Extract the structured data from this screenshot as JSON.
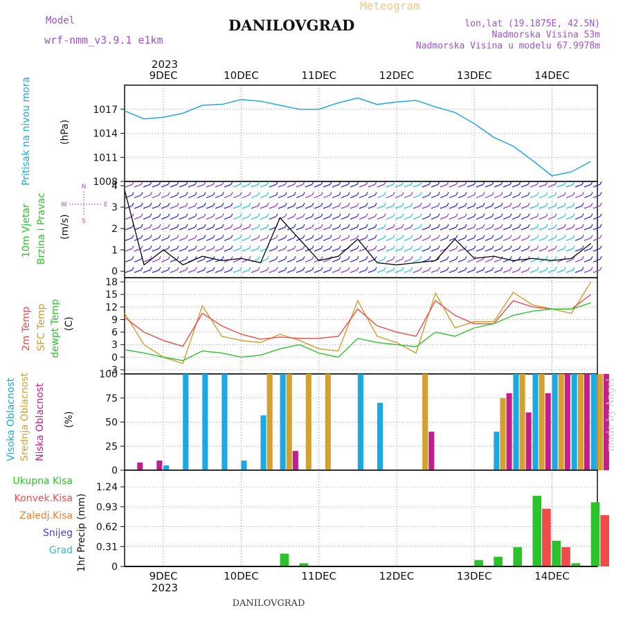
{
  "header": {
    "model_label": "Model",
    "model_name": "wrf-nmm_v3.9.1 e1km",
    "meteogram_label": "Meteogram",
    "title": "DANILOVGRAD",
    "coords": "lon,lat (19.1875E, 42.5N)",
    "elevation": "Nadmorska Visina 53m",
    "model_elevation": "Nadmorska Visina u modelu 67.9978m"
  },
  "top_axis": {
    "year": "2023",
    "days": [
      "9DEC",
      "10DEC",
      "11DEC",
      "12DEC",
      "13DEC",
      "14DEC"
    ]
  },
  "bottom_axis": {
    "year": "2023",
    "days": [
      "9DEC",
      "10DEC",
      "11DEC",
      "12DEC",
      "13DEC",
      "14DEC"
    ]
  },
  "footer": {
    "station": "DANILOVGRAD"
  },
  "watermark": "made by Angel",
  "colors": {
    "pressure": "#1ca8e0",
    "wind_blue": "#1a1aff",
    "wind_purple": "#8a2be2",
    "wind_cyan": "#21c5d0",
    "wind_green": "#3cc43c",
    "wind_yellow": "#d8b000",
    "t2m": "#f04a4a",
    "sfc": "#d49a2a",
    "dewpt": "#2ac42a",
    "cloud_high": "#1ca8e0",
    "cloud_mid": "#d4a030",
    "cloud_low": "#c0208c",
    "precip_total": "#2ac42a",
    "precip_conv": "#f04a4a",
    "precip_strat": "#f08030",
    "snow": "#4040e0",
    "hail": "#30c0c0"
  },
  "panels": {
    "pressure": {
      "label1": "Pritisak na nivou mora",
      "unit": "(hPa)"
    },
    "wind": {
      "label1": "10m Vjetar",
      "label2": "Brzina i Pravac",
      "unit": "(m/s)",
      "compass_n": "N",
      "compass_s": "S",
      "compass_w": "W",
      "compass_e": "E"
    },
    "temp": {
      "label1": "2m Temp",
      "label2": "SFC Temp",
      "label3": "dewpt Temp",
      "unit": "(C)"
    },
    "cloud": {
      "label1": "Visoka Oblacnost",
      "label2": "Srednja Oblacnost",
      "label3": "Niska Oblacnost",
      "unit": "(%)"
    },
    "precip": {
      "label_total": "Ukupna Kisa",
      "label_conv": "Konvek.Kisa",
      "label_strat": "Zaledj.Kisa",
      "label_snow": "Snijeg",
      "label_hail": "Grad",
      "ylabel": "1hr Precip (mm)"
    }
  },
  "chart_data": [
    {
      "type": "line",
      "title": "",
      "xlabel": "",
      "ylabel": "(hPa)",
      "x": [
        "2023-12-08T12",
        "2023-12-08T18",
        "2023-12-09T00",
        "2023-12-09T06",
        "2023-12-09T12",
        "2023-12-09T18",
        "2023-12-10T00",
        "2023-12-10T06",
        "2023-12-10T12",
        "2023-12-10T18",
        "2023-12-11T00",
        "2023-12-11T06",
        "2023-12-11T12",
        "2023-12-11T18",
        "2023-12-12T00",
        "2023-12-12T06",
        "2023-12-12T12",
        "2023-12-12T18",
        "2023-12-13T00",
        "2023-12-13T06",
        "2023-12-13T12",
        "2023-12-13T18",
        "2023-12-14T00",
        "2023-12-14T06",
        "2023-12-14T12"
      ],
      "series": [
        {
          "name": "Pritisak na nivou mora",
          "values": [
            1016.8,
            1015.8,
            1016.0,
            1016.5,
            1017.5,
            1017.6,
            1018.2,
            1018.0,
            1017.5,
            1017.0,
            1017.0,
            1017.8,
            1018.4,
            1017.6,
            1017.9,
            1018.1,
            1017.3,
            1016.6,
            1015.2,
            1013.5,
            1012.4,
            1010.6,
            1008.7,
            1009.2,
            1010.5
          ]
        }
      ],
      "ylim": [
        1008,
        1020
      ],
      "yticks": [
        1008,
        1011,
        1014,
        1017
      ],
      "grid": true
    },
    {
      "type": "line",
      "title": "",
      "xlabel": "",
      "ylabel": "(m/s)",
      "x": [
        "2023-12-08T12",
        "2023-12-08T18",
        "2023-12-09T00",
        "2023-12-09T06",
        "2023-12-09T12",
        "2023-12-09T18",
        "2023-12-10T00",
        "2023-12-10T06",
        "2023-12-10T12",
        "2023-12-10T18",
        "2023-12-11T00",
        "2023-12-11T06",
        "2023-12-11T12",
        "2023-12-11T18",
        "2023-12-12T00",
        "2023-12-12T06",
        "2023-12-12T12",
        "2023-12-12T18",
        "2023-12-13T00",
        "2023-12-13T06",
        "2023-12-13T12",
        "2023-12-13T18",
        "2023-12-14T00",
        "2023-12-14T06",
        "2023-12-14T12"
      ],
      "series": [
        {
          "name": "Brzina",
          "values": [
            3.8,
            0.3,
            1.0,
            0.3,
            0.7,
            0.5,
            0.6,
            0.4,
            2.5,
            1.5,
            0.5,
            0.7,
            1.5,
            0.4,
            0.3,
            0.4,
            0.5,
            1.5,
            0.6,
            0.7,
            0.5,
            0.6,
            0.5,
            0.6,
            1.3
          ]
        }
      ],
      "ylim": [
        -0.3,
        4.2
      ],
      "yticks": [
        0,
        1,
        2,
        3,
        4
      ],
      "grid": true
    },
    {
      "type": "line",
      "title": "",
      "xlabel": "",
      "ylabel": "(C)",
      "x": [
        "2023-12-08T12",
        "2023-12-08T18",
        "2023-12-09T00",
        "2023-12-09T06",
        "2023-12-09T12",
        "2023-12-09T18",
        "2023-12-10T00",
        "2023-12-10T06",
        "2023-12-10T12",
        "2023-12-10T18",
        "2023-12-11T00",
        "2023-12-11T06",
        "2023-12-11T12",
        "2023-12-11T18",
        "2023-12-12T00",
        "2023-12-12T06",
        "2023-12-12T12",
        "2023-12-12T18",
        "2023-12-13T00",
        "2023-12-13T06",
        "2023-12-13T12",
        "2023-12-13T18",
        "2023-12-14T00",
        "2023-12-14T06",
        "2023-12-14T12"
      ],
      "series": [
        {
          "name": "2m Temp",
          "values": [
            9.5,
            6.0,
            4.0,
            2.6,
            10.5,
            7.5,
            5.5,
            4.3,
            4.8,
            4.5,
            4.5,
            5.0,
            11.5,
            7.5,
            6.0,
            5.0,
            13.5,
            10.0,
            8.0,
            8.0,
            13.5,
            12.0,
            11.5,
            11.5,
            15.0
          ]
        },
        {
          "name": "SFC Temp",
          "values": [
            10.5,
            3.0,
            0.0,
            -1.5,
            12.3,
            5.0,
            4.0,
            3.5,
            5.5,
            4.0,
            2.0,
            1.5,
            13.5,
            5.0,
            3.5,
            1.0,
            15.3,
            7.0,
            8.5,
            8.5,
            15.5,
            12.5,
            11.5,
            10.5,
            18.0
          ]
        },
        {
          "name": "dewpt Temp",
          "values": [
            1.8,
            1.0,
            0.0,
            -0.8,
            1.5,
            1.0,
            0.0,
            0.5,
            2.0,
            3.0,
            1.0,
            0.0,
            4.5,
            3.5,
            3.0,
            2.5,
            6.0,
            5.0,
            7.0,
            8.0,
            10.0,
            11.0,
            11.5,
            11.5,
            13.0
          ]
        }
      ],
      "ylim": [
        -4,
        19
      ],
      "yticks": [
        -3,
        0,
        3,
        6,
        9,
        12,
        15,
        18
      ],
      "grid": true
    },
    {
      "type": "bar",
      "title": "",
      "xlabel": "",
      "ylabel": "(%)",
      "x": [
        "2023-12-08T12",
        "2023-12-08T18",
        "2023-12-09T00",
        "2023-12-09T06",
        "2023-12-09T12",
        "2023-12-09T18",
        "2023-12-10T00",
        "2023-12-10T06",
        "2023-12-10T12",
        "2023-12-10T18",
        "2023-12-11T00",
        "2023-12-11T06",
        "2023-12-11T12",
        "2023-12-11T18",
        "2023-12-12T00",
        "2023-12-12T06",
        "2023-12-12T12",
        "2023-12-12T18",
        "2023-12-13T00",
        "2023-12-13T06",
        "2023-12-13T12",
        "2023-12-13T18",
        "2023-12-14T00",
        "2023-12-14T06",
        "2023-12-14T12"
      ],
      "series": [
        {
          "name": "Visoka Oblacnost",
          "values": [
            0,
            0,
            5,
            100,
            100,
            100,
            10,
            57,
            100,
            0,
            0,
            0,
            100,
            70,
            0,
            0,
            0,
            0,
            0,
            40,
            100,
            100,
            100,
            100,
            100
          ]
        },
        {
          "name": "Srednja Oblacnost",
          "values": [
            0,
            0,
            0,
            0,
            0,
            0,
            0,
            100,
            100,
            100,
            100,
            0,
            0,
            0,
            0,
            100,
            0,
            0,
            0,
            75,
            100,
            100,
            100,
            100,
            100
          ]
        },
        {
          "name": "Niska Oblacnost",
          "values": [
            8,
            10,
            0,
            0,
            0,
            0,
            0,
            0,
            20,
            0,
            0,
            0,
            0,
            0,
            0,
            40,
            0,
            0,
            0,
            80,
            60,
            80,
            100,
            100,
            100
          ]
        }
      ],
      "ylim": [
        0,
        100
      ],
      "yticks": [
        0,
        25,
        50,
        75,
        100
      ],
      "grid": true
    },
    {
      "type": "bar",
      "title": "",
      "xlabel": "",
      "ylabel": "1hr Precip (mm)",
      "x": [
        "2023-12-08T12",
        "2023-12-08T18",
        "2023-12-09T00",
        "2023-12-09T06",
        "2023-12-09T12",
        "2023-12-09T18",
        "2023-12-10T00",
        "2023-12-10T06",
        "2023-12-10T12",
        "2023-12-10T18",
        "2023-12-11T00",
        "2023-12-11T06",
        "2023-12-11T12",
        "2023-12-11T18",
        "2023-12-12T00",
        "2023-12-12T06",
        "2023-12-12T12",
        "2023-12-12T18",
        "2023-12-13T00",
        "2023-12-13T06",
        "2023-12-13T12",
        "2023-12-13T18",
        "2023-12-14T00",
        "2023-12-14T06",
        "2023-12-14T12"
      ],
      "series": [
        {
          "name": "Ukupna Kisa",
          "values": [
            0,
            0,
            0,
            0,
            0,
            0,
            0,
            0,
            0.2,
            0.05,
            0,
            0,
            0,
            0,
            0,
            0,
            0,
            0,
            0.1,
            0.15,
            0.3,
            1.1,
            0.4,
            0.05,
            1.0
          ]
        },
        {
          "name": "Konvek.Kisa",
          "values": [
            0,
            0,
            0,
            0,
            0,
            0,
            0,
            0,
            0,
            0,
            0,
            0,
            0,
            0,
            0,
            0,
            0,
            0,
            0,
            0,
            0,
            0.9,
            0.3,
            0,
            0.8
          ]
        },
        {
          "name": "Zaledj.Kisa",
          "values": [
            0,
            0,
            0,
            0,
            0,
            0,
            0,
            0,
            0,
            0,
            0,
            0,
            0,
            0,
            0,
            0,
            0,
            0,
            0,
            0,
            0,
            0,
            0,
            0,
            0
          ]
        },
        {
          "name": "Snijeg",
          "values": [
            0,
            0,
            0,
            0,
            0,
            0,
            0,
            0,
            0,
            0,
            0,
            0,
            0,
            0,
            0,
            0,
            0,
            0,
            0,
            0,
            0,
            0,
            0,
            0,
            0
          ]
        },
        {
          "name": "Grad",
          "values": [
            0,
            0,
            0,
            0,
            0,
            0,
            0,
            0,
            0,
            0,
            0,
            0,
            0,
            0,
            0,
            0,
            0,
            0,
            0,
            0,
            0,
            0,
            0,
            0,
            0
          ]
        }
      ],
      "ylim": [
        0,
        1.5
      ],
      "yticks": [
        0,
        0.31,
        0.62,
        0.93,
        1.24
      ],
      "grid": true
    }
  ]
}
